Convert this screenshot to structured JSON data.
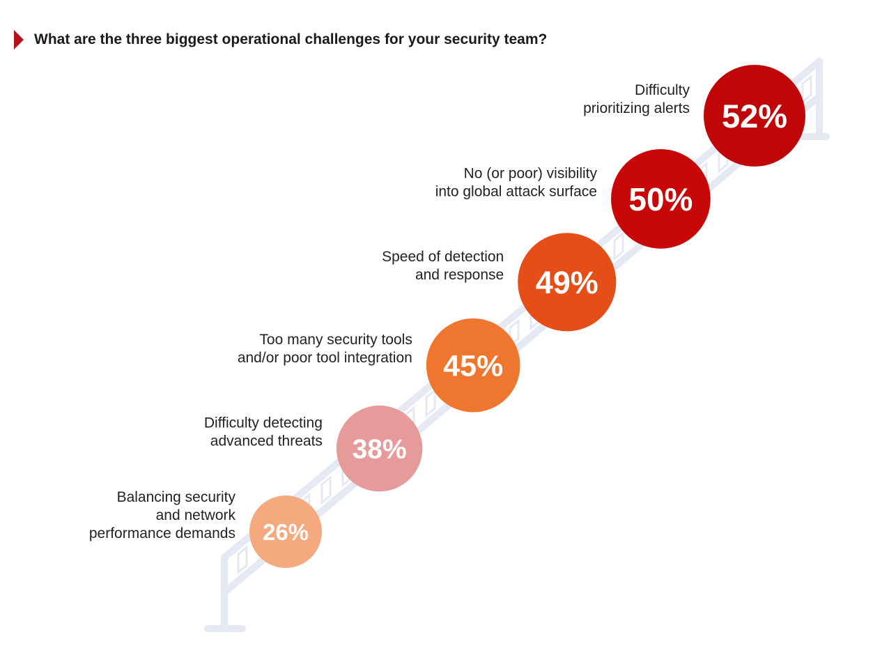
{
  "header": {
    "title": "What are the three biggest operational challenges for your security team?"
  },
  "chart_data": {
    "type": "bubble",
    "title": "What are the three biggest operational challenges for your security team?",
    "unit": "%",
    "items": [
      {
        "label_lines": [
          "Balancing security",
          "and network",
          "performance demands"
        ],
        "value": 26,
        "value_label": "26%",
        "color": "#f4a97e"
      },
      {
        "label_lines": [
          "Difficulty detecting",
          "advanced threats"
        ],
        "value": 38,
        "value_label": "38%",
        "color": "#e69a9a"
      },
      {
        "label_lines": [
          "Too many security tools",
          "and/or poor tool integration"
        ],
        "value": 45,
        "value_label": "45%",
        "color": "#ee762e"
      },
      {
        "label_lines": [
          "Speed of detection",
          "and response"
        ],
        "value": 49,
        "value_label": "49%",
        "color": "#e54e17"
      },
      {
        "label_lines": [
          "No (or poor) visibility",
          "into global attack surface"
        ],
        "value": 50,
        "value_label": "50%",
        "color": "#c70708"
      },
      {
        "label_lines": [
          "Difficulty",
          "prioritizing alerts"
        ],
        "value": 52,
        "value_label": "52%",
        "color": "#c00707"
      }
    ],
    "background_graphic_color": "#e4e9f4"
  }
}
